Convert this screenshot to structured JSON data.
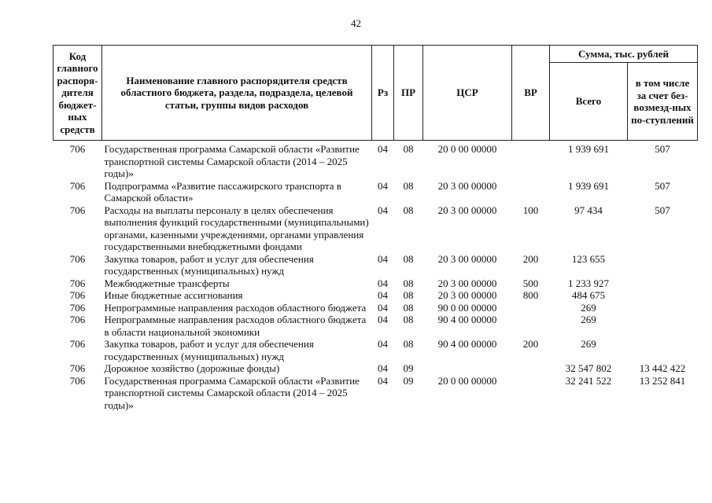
{
  "page_number": "42",
  "header": {
    "code": "Код главного распоря-дителя бюджет-ных средств",
    "code_italic": "главного",
    "name": "Наименование главного распорядителя средств областного бюджета, раздела, подраздела, целевой статьи, группы видов расходов",
    "rz": "Рз",
    "pr": "ПР",
    "csr": "ЦСР",
    "vr": "ВР",
    "sum": "Сумма, тыс. рублей",
    "total": "Всего",
    "incl": "в том числе за счет без-возмезд-ных по-ступлений"
  },
  "rows": [
    {
      "code": "706",
      "name": "Государственная программа Самарской области «Развитие транспортной системы Самарской области (2014 – 2025 годы)»",
      "rz": "04",
      "pr": "08",
      "csr": "20 0 00 00000",
      "vr": "",
      "total": "1 939 691",
      "incl": "507"
    },
    {
      "code": "706",
      "name": "Подпрограмма «Развитие пассажирского транспорта в Самарской области»",
      "rz": "04",
      "pr": "08",
      "csr": "20 3 00 00000",
      "vr": "",
      "total": "1 939 691",
      "incl": "507"
    },
    {
      "code": "706",
      "name": "Расходы на выплаты персоналу в целях обеспечения выполнения функций государственными (муниципальными) органами, казенными учреждениями, органами управления государственными внебюджетными фондами",
      "rz": "04",
      "pr": "08",
      "csr": "20 3 00 00000",
      "vr": "100",
      "total": "97 434",
      "incl": "507"
    },
    {
      "code": "706",
      "name": "Закупка товаров, работ и услуг для обеспечения государственных (муниципальных) нужд",
      "rz": "04",
      "pr": "08",
      "csr": "20 3 00 00000",
      "vr": "200",
      "total": "123 655",
      "incl": ""
    },
    {
      "code": "706",
      "name": "Межбюджетные трансферты",
      "rz": "04",
      "pr": "08",
      "csr": "20 3 00 00000",
      "vr": "500",
      "total": "1 233 927",
      "incl": ""
    },
    {
      "code": "706",
      "name": "Иные бюджетные ассигнования",
      "rz": "04",
      "pr": "08",
      "csr": "20 3 00 00000",
      "vr": "800",
      "total": "484 675",
      "incl": ""
    },
    {
      "code": "706",
      "name": "Непрограммные направления расходов областного бюджета",
      "rz": "04",
      "pr": "08",
      "csr": "90 0 00 00000",
      "vr": "",
      "total": "269",
      "incl": ""
    },
    {
      "code": "706",
      "name": "Непрограммные направления расходов областного бюджета в области национальной экономики",
      "rz": "04",
      "pr": "08",
      "csr": "90 4 00 00000",
      "vr": "",
      "total": "269",
      "incl": ""
    },
    {
      "code": "706",
      "name": "Закупка товаров, работ и услуг для обеспечения государственных (муниципальных) нужд",
      "rz": "04",
      "pr": "08",
      "csr": "90 4 00 00000",
      "vr": "200",
      "total": "269",
      "incl": ""
    },
    {
      "code": "706",
      "name": "Дорожное хозяйство (дорожные фонды)",
      "rz": "04",
      "pr": "09",
      "csr": "",
      "vr": "",
      "total": "32 547 802",
      "incl": "13 442 422"
    },
    {
      "code": "706",
      "name": "Государственная программа Самарской области «Развитие транспортной системы Самарской области (2014 – 2025 годы)»",
      "rz": "04",
      "pr": "09",
      "csr": "20 0 00 00000",
      "vr": "",
      "total": "32 241 522",
      "incl": "13 252 841"
    }
  ]
}
